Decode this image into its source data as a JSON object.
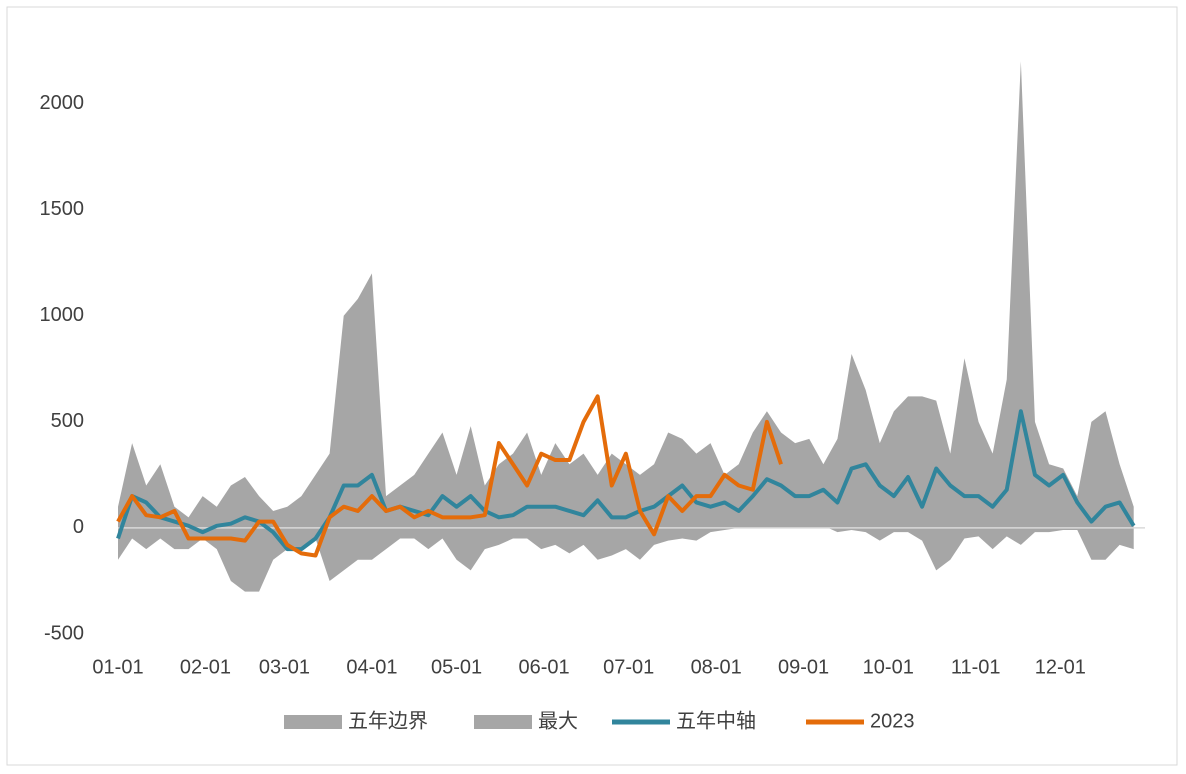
{
  "chart_data": {
    "type": "line",
    "x": [
      0,
      5,
      10,
      15,
      20,
      25,
      30,
      35,
      40,
      45,
      50,
      55,
      60,
      65,
      70,
      75,
      80,
      85,
      90,
      95,
      100,
      105,
      110,
      115,
      120,
      125,
      130,
      135,
      140,
      145,
      150,
      155,
      160,
      165,
      170,
      175,
      180,
      185,
      190,
      195,
      200,
      205,
      210,
      215,
      220,
      225,
      230,
      235,
      240,
      245,
      250,
      255,
      260,
      265,
      270,
      275,
      280,
      285,
      290,
      295,
      300,
      305,
      310,
      315,
      320,
      325,
      330,
      335,
      340,
      345,
      350,
      355,
      360
    ],
    "series": [
      {
        "name": "五年边界",
        "kind": "area",
        "color": "#a6a6a6",
        "values": [
          -150,
          -50,
          -100,
          -50,
          -100,
          -100,
          -50,
          -100,
          -250,
          -300,
          -300,
          -150,
          -100,
          -100,
          -50,
          -250,
          -200,
          -150,
          -150,
          -100,
          -50,
          -50,
          -100,
          -50,
          -150,
          -200,
          -100,
          -80,
          -50,
          -50,
          -100,
          -80,
          -120,
          -80,
          -150,
          -130,
          -100,
          -150,
          -80,
          -60,
          -50,
          -60,
          -20,
          -10,
          0,
          0,
          10,
          20,
          20,
          0,
          10,
          -20,
          -10,
          -20,
          -60,
          -20,
          -20,
          -60,
          -200,
          -150,
          -50,
          -40,
          -100,
          -40,
          -80,
          -20,
          -20,
          -10,
          -10,
          -150,
          -150,
          -80,
          -100
        ]
      },
      {
        "name": "最大",
        "kind": "area",
        "color": "#a6a6a6",
        "values": [
          100,
          400,
          200,
          300,
          100,
          50,
          150,
          100,
          200,
          240,
          150,
          80,
          100,
          150,
          250,
          350,
          1000,
          1080,
          1200,
          150,
          200,
          250,
          350,
          450,
          250,
          480,
          200,
          300,
          350,
          450,
          250,
          400,
          300,
          350,
          250,
          350,
          300,
          250,
          300,
          450,
          420,
          350,
          400,
          250,
          300,
          450,
          550,
          450,
          400,
          420,
          300,
          420,
          820,
          650,
          400,
          550,
          620,
          620,
          600,
          350,
          800,
          500,
          350,
          700,
          2200,
          500,
          300,
          280,
          150,
          500,
          550,
          300,
          100
        ]
      },
      {
        "name": "五年中轴",
        "kind": "line",
        "color": "#31859c",
        "values": [
          -50,
          150,
          120,
          50,
          30,
          10,
          -20,
          10,
          20,
          50,
          30,
          -20,
          -100,
          -100,
          -50,
          50,
          200,
          200,
          250,
          80,
          100,
          80,
          60,
          150,
          100,
          150,
          80,
          50,
          60,
          100,
          100,
          100,
          80,
          60,
          130,
          50,
          50,
          80,
          100,
          150,
          200,
          120,
          100,
          120,
          80,
          150,
          230,
          200,
          150,
          150,
          180,
          120,
          280,
          300,
          200,
          150,
          240,
          100,
          280,
          200,
          150,
          150,
          100,
          180,
          550,
          250,
          200,
          250,
          120,
          30,
          100,
          120,
          10
        ]
      },
      {
        "name": "2023",
        "kind": "line",
        "color": "#e46c0a",
        "values": [
          30,
          150,
          60,
          50,
          80,
          -50,
          -50,
          -50,
          -50,
          -60,
          30,
          30,
          -80,
          -120,
          -130,
          50,
          100,
          80,
          150,
          80,
          100,
          50,
          80,
          50,
          50,
          50,
          60,
          400,
          300,
          200,
          350,
          320,
          320,
          500,
          620,
          200,
          350,
          80,
          -30,
          150,
          80,
          150,
          150,
          250,
          200,
          180,
          500,
          300,
          null,
          null,
          null,
          null,
          null,
          null,
          null,
          null,
          null,
          null,
          null,
          null,
          null,
          null,
          null,
          null,
          null,
          null,
          null,
          null,
          null,
          null,
          null,
          null,
          null
        ]
      }
    ],
    "xlim": [
      0,
      364
    ],
    "xticks": [
      {
        "value": 0,
        "label": "01-01"
      },
      {
        "value": 31,
        "label": "02-01"
      },
      {
        "value": 59,
        "label": "03-01"
      },
      {
        "value": 90,
        "label": "04-01"
      },
      {
        "value": 120,
        "label": "05-01"
      },
      {
        "value": 151,
        "label": "06-01"
      },
      {
        "value": 181,
        "label": "07-01"
      },
      {
        "value": 212,
        "label": "08-01"
      },
      {
        "value": 243,
        "label": "09-01"
      },
      {
        "value": 273,
        "label": "10-01"
      },
      {
        "value": 304,
        "label": "11-01"
      },
      {
        "value": 334,
        "label": "12-01"
      }
    ],
    "ylim": [
      -500,
      2300
    ],
    "yticks": [
      -500,
      0,
      500,
      1000,
      1500,
      2000
    ],
    "legend": "bottom"
  }
}
